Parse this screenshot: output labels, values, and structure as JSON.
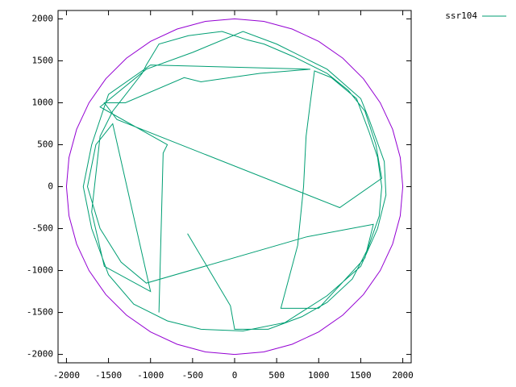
{
  "chart_data": {
    "type": "line",
    "xlim": [
      -2100,
      2100
    ],
    "ylim": [
      -2100,
      2100
    ],
    "xticks": [
      -2000,
      -1500,
      -1000,
      -500,
      0,
      500,
      1000,
      1500,
      2000
    ],
    "yticks": [
      -2000,
      -1500,
      -1000,
      -500,
      0,
      500,
      1000,
      1500,
      2000
    ],
    "legend": "top-right-outside",
    "series": [
      {
        "color": "#9400d3",
        "x": [
          2000,
          1970,
          1879,
          1732,
          1532,
          1286,
          1000,
          684,
          347,
          0,
          -347,
          -684,
          -1000,
          -1286,
          -1532,
          -1732,
          -1879,
          -1970,
          -2000,
          -1970,
          -1879,
          -1732,
          -1532,
          -1286,
          -1000,
          -684,
          -347,
          0,
          347,
          684,
          1000,
          1286,
          1532,
          1732,
          1879,
          1970,
          2000
        ],
        "values": [
          0,
          347,
          684,
          1000,
          1286,
          1532,
          1732,
          1879,
          1970,
          2000,
          1970,
          1879,
          1732,
          1532,
          1286,
          1000,
          684,
          347,
          0,
          -347,
          -684,
          -1000,
          -1286,
          -1532,
          -1732,
          -1879,
          -1970,
          -2000,
          -1970,
          -1879,
          -1732,
          -1532,
          -1286,
          -1000,
          -684,
          -347,
          0
        ]
      },
      {
        "name": "ssr104",
        "color": "#009e73",
        "x": [
          -560,
          -50,
          0,
          400,
          800,
          1100,
          1400,
          1580,
          1720,
          1750,
          1700,
          1600,
          1450,
          1150,
          950,
          900,
          850,
          820,
          750,
          550,
          1000,
          1550,
          1650,
          850,
          -1050,
          -1350,
          -1600,
          -1750,
          -1650,
          -1450,
          -1000,
          -1550,
          -1700,
          -1600,
          -1450,
          -1100,
          -1050,
          -900,
          -550,
          -150,
          150,
          350,
          700,
          1100,
          1350,
          1550,
          1680,
          1750,
          1250,
          -1400,
          -1550,
          -1300,
          -600,
          -400,
          300,
          900,
          -1000,
          -1500,
          -1550,
          -1700,
          -1800,
          -1700,
          -1500,
          -1200,
          -800,
          -400,
          100,
          600,
          1100,
          1500,
          1700,
          1800,
          1780,
          1600,
          1500,
          1100,
          500,
          100,
          -500,
          -1050,
          -1600,
          -800,
          -850,
          -900
        ],
        "values": [
          -560,
          -1420,
          -1700,
          -1700,
          -1550,
          -1380,
          -1100,
          -750,
          -350,
          0,
          350,
          650,
          1050,
          1300,
          1380,
          1000,
          600,
          0,
          -700,
          -1450,
          -1450,
          -850,
          -450,
          -600,
          -1150,
          -900,
          -500,
          0,
          500,
          750,
          -1250,
          -950,
          -300,
          600,
          900,
          1350,
          1450,
          1700,
          1800,
          1850,
          1750,
          1700,
          1550,
          1350,
          1150,
          900,
          500,
          100,
          -250,
          800,
          1000,
          1000,
          1300,
          1250,
          1350,
          1400,
          1450,
          1100,
          950,
          500,
          0,
          -500,
          -1050,
          -1400,
          -1600,
          -1700,
          -1720,
          -1620,
          -1300,
          -950,
          -500,
          -100,
          300,
          800,
          1050,
          1400,
          1700,
          1850,
          1600,
          1400,
          950,
          500,
          400,
          -1500
        ]
      }
    ]
  }
}
